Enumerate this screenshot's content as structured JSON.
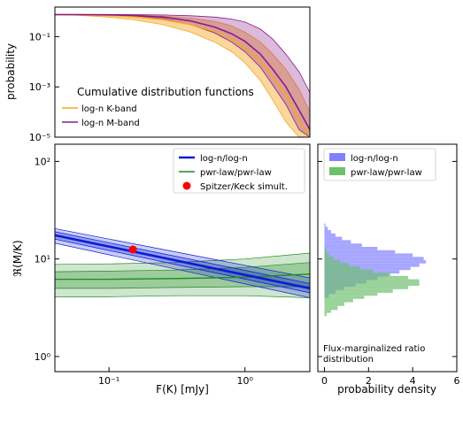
{
  "colors": {
    "k_band": "#f5a623",
    "m_band": "#8b1a8b",
    "lognlogn": "#0a1bd6",
    "pwrlaw": "#1e8a1e",
    "spitzer": "#ff0000",
    "hist_blue": "#8080ff",
    "hist_green": "#6fbf6f"
  },
  "chart_data": [
    {
      "id": "cdf",
      "type": "area",
      "title": "Cumulative distribution functions",
      "xlabel": "",
      "ylabel": "probability",
      "xscale": "log",
      "yscale": "log",
      "xlim": [
        0.04,
        3.0
      ],
      "ylim": [
        1e-05,
        1.5
      ],
      "yticks": [
        {
          "v": 0.1,
          "label": "10⁻¹"
        },
        {
          "v": 0.001,
          "label": "10⁻³"
        },
        {
          "v": 1e-05,
          "label": "10⁻⁵"
        }
      ],
      "legend_position": "lower-left",
      "series": [
        {
          "name": "log-n K-band",
          "x": [
            0.04,
            0.06,
            0.1,
            0.15,
            0.25,
            0.4,
            0.6,
            0.8,
            1.0,
            1.3,
            1.6,
            2.0,
            2.5,
            3.0
          ],
          "y": [
            0.75,
            0.74,
            0.7,
            0.62,
            0.48,
            0.3,
            0.16,
            0.08,
            0.035,
            0.01,
            0.0025,
            0.0005,
            5e-05,
            1e-05
          ],
          "lo": [
            0.74,
            0.7,
            0.6,
            0.48,
            0.3,
            0.15,
            0.06,
            0.025,
            0.009,
            0.0018,
            0.0003,
            4e-05,
            1e-05,
            1e-05
          ],
          "hi": [
            0.76,
            0.75,
            0.74,
            0.72,
            0.66,
            0.55,
            0.4,
            0.27,
            0.15,
            0.06,
            0.02,
            0.005,
            0.0008,
            0.0001
          ]
        },
        {
          "name": "log-n M-band",
          "x": [
            0.04,
            0.06,
            0.1,
            0.15,
            0.25,
            0.4,
            0.6,
            0.8,
            1.0,
            1.3,
            1.6,
            2.0,
            2.5,
            3.0
          ],
          "y": [
            0.75,
            0.75,
            0.74,
            0.7,
            0.6,
            0.42,
            0.24,
            0.13,
            0.065,
            0.02,
            0.005,
            0.001,
            0.00012,
            2e-05
          ],
          "lo": [
            0.75,
            0.74,
            0.72,
            0.66,
            0.52,
            0.3,
            0.14,
            0.06,
            0.025,
            0.006,
            0.0012,
            0.0002,
            2e-05,
            1e-05
          ],
          "hi": [
            0.76,
            0.76,
            0.76,
            0.75,
            0.73,
            0.68,
            0.6,
            0.5,
            0.38,
            0.2,
            0.08,
            0.02,
            0.004,
            0.0006
          ]
        }
      ]
    },
    {
      "id": "ratio",
      "type": "line",
      "xlabel": "F(K) [mJy]",
      "ylabel": "ℜ(M/K)",
      "xscale": "log",
      "yscale": "log",
      "xlim": [
        0.04,
        3.0
      ],
      "ylim": [
        0.7,
        150
      ],
      "xticks": [
        {
          "v": 0.1,
          "label": "10⁻¹"
        },
        {
          "v": 1,
          "label": "10⁰"
        }
      ],
      "yticks": [
        {
          "v": 1,
          "label": "10⁰"
        },
        {
          "v": 10,
          "label": "10¹"
        },
        {
          "v": 100,
          "label": "10²"
        }
      ],
      "legend_position": "top-right",
      "series": [
        {
          "name": "log-n/log-n",
          "x": [
            0.04,
            3.0
          ],
          "y": [
            17.5,
            5.0
          ],
          "lo1": [
            16.0,
            4.5
          ],
          "hi1": [
            19.0,
            5.6
          ],
          "lo2": [
            14.5,
            4.0
          ],
          "hi2": [
            20.5,
            6.4
          ]
        },
        {
          "name": "pwr-law/pwr-law",
          "x": [
            0.04,
            0.1,
            0.3,
            1.0,
            3.0
          ],
          "y": [
            6.2,
            6.2,
            6.3,
            6.5,
            7.0
          ],
          "lo1": [
            5.0,
            5.0,
            5.1,
            5.2,
            5.2
          ],
          "hi1": [
            7.4,
            7.5,
            7.7,
            8.2,
            9.2
          ],
          "lo2": [
            4.1,
            4.1,
            4.2,
            4.2,
            4.0
          ],
          "hi2": [
            8.8,
            8.9,
            9.2,
            10.0,
            11.5
          ]
        }
      ],
      "points": [
        {
          "name": "Spitzer/Keck simult.",
          "x": 0.15,
          "y": 12.5
        }
      ]
    },
    {
      "id": "hist",
      "type": "bar",
      "orientation": "horizontal",
      "xlabel": "probability density",
      "ylabel": "",
      "xlim": [
        -0.3,
        6
      ],
      "ylim": [
        0.7,
        150
      ],
      "xticks": [
        0,
        2,
        4,
        6
      ],
      "legend_position": "top",
      "annotation": "Flux-marginalized ratio distribution",
      "series": [
        {
          "name": "log-n/log-n",
          "bins_y": [
            4.0,
            4.4,
            4.8,
            5.2,
            5.6,
            6.1,
            6.6,
            7.1,
            7.7,
            8.3,
            9.0,
            9.7,
            10.5,
            11.4,
            12.3,
            13.3,
            14.4,
            15.6,
            16.9,
            18.3,
            19.8,
            21.4
          ],
          "density": [
            0.2,
            0.5,
            0.9,
            1.4,
            1.9,
            2.4,
            2.9,
            3.4,
            3.9,
            4.3,
            4.6,
            4.5,
            4.0,
            3.2,
            2.4,
            1.7,
            1.2,
            0.8,
            0.5,
            0.3,
            0.15,
            0.05
          ]
        },
        {
          "name": "pwr-law/pwr-law",
          "bins_y": [
            2.6,
            2.8,
            3.0,
            3.3,
            3.6,
            3.9,
            4.2,
            4.5,
            4.9,
            5.3,
            5.7,
            6.2,
            6.7,
            7.2,
            7.8,
            8.4,
            9.1,
            9.8,
            10.6,
            11.5,
            12.4
          ],
          "density": [
            0.1,
            0.3,
            0.6,
            0.9,
            1.3,
            1.8,
            2.4,
            3.1,
            3.8,
            4.3,
            4.3,
            3.8,
            3.0,
            2.2,
            1.6,
            1.1,
            0.7,
            0.4,
            0.2,
            0.1,
            0.05
          ]
        }
      ]
    }
  ]
}
